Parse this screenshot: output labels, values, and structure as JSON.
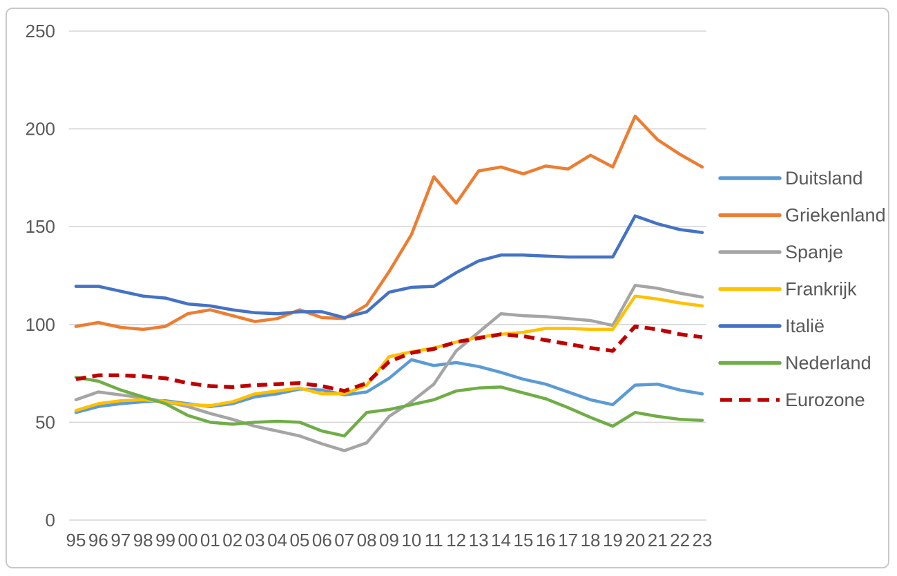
{
  "chart_data": {
    "type": "line",
    "title": "",
    "xlabel": "",
    "ylabel": "",
    "categories": [
      "95",
      "96",
      "97",
      "98",
      "99",
      "00",
      "01",
      "02",
      "03",
      "04",
      "05",
      "06",
      "07",
      "08",
      "09",
      "10",
      "11",
      "12",
      "13",
      "14",
      "15",
      "16",
      "17",
      "18",
      "19",
      "20",
      "21",
      "22",
      "23"
    ],
    "y_ticks": [
      0,
      50,
      100,
      150,
      200,
      250
    ],
    "ylim": [
      0,
      250
    ],
    "grid": "horizontal",
    "legend_position": "right",
    "series": [
      {
        "name": "Duitsland",
        "color": "#5B9BD5",
        "line_style": "solid",
        "values": [
          55,
          58,
          59.5,
          60.5,
          61,
          59.5,
          58,
          59.5,
          63,
          64.5,
          67,
          66.5,
          64,
          65.5,
          72.5,
          82,
          79,
          80.5,
          78.5,
          75.5,
          72,
          69.5,
          65.5,
          61.5,
          59,
          69,
          69.5,
          66.5,
          64.5
        ]
      },
      {
        "name": "Griekenland",
        "color": "#ED7D31",
        "line_style": "solid",
        "values": [
          99,
          101,
          98.5,
          97.5,
          99,
          105.5,
          107.5,
          104.5,
          101.5,
          103,
          107.5,
          103.5,
          103,
          110,
          127,
          146,
          175.5,
          162,
          178.5,
          180.5,
          177,
          181,
          179.5,
          186.5,
          180.5,
          206.5,
          194.5,
          187,
          180.5
        ]
      },
      {
        "name": "Spanje",
        "color": "#A5A5A5",
        "line_style": "solid",
        "values": [
          61.5,
          65.5,
          64,
          62.5,
          60.5,
          58,
          54.5,
          51.5,
          48,
          45.5,
          43,
          39,
          35.5,
          39.5,
          53,
          60.5,
          69.5,
          86.5,
          96,
          105.5,
          104.5,
          104,
          103,
          102,
          99.5,
          120,
          118.5,
          116,
          114
        ]
      },
      {
        "name": "Frankrijk",
        "color": "#FFC000",
        "line_style": "solid",
        "values": [
          56,
          59.5,
          61,
          61.5,
          60.5,
          59,
          58.5,
          60.5,
          64.5,
          66,
          67.5,
          64.5,
          64.5,
          69,
          83.5,
          86,
          88,
          91,
          93.5,
          95,
          96,
          98,
          98,
          97.5,
          97.5,
          114.5,
          113,
          111,
          109.5
        ]
      },
      {
        "name": "Italië",
        "color": "#4472C4",
        "line_style": "solid",
        "values": [
          119.5,
          119.5,
          117,
          114.5,
          113.5,
          110.5,
          109.5,
          107.5,
          106,
          105.5,
          106.5,
          106.5,
          103.5,
          106.5,
          116.5,
          119,
          119.5,
          126.5,
          132.5,
          135.5,
          135.5,
          135,
          134.5,
          134.5,
          134.5,
          155.5,
          151.5,
          148.5,
          147
        ]
      },
      {
        "name": "Nederland",
        "color": "#70AD47",
        "line_style": "solid",
        "values": [
          73,
          71,
          66.5,
          63,
          59.5,
          53.5,
          50,
          49,
          50,
          50.5,
          50,
          45.5,
          43,
          55,
          56.5,
          59,
          61.5,
          66,
          67.5,
          68,
          65,
          62,
          57.5,
          52.5,
          48,
          55,
          53,
          51.5,
          51
        ]
      },
      {
        "name": "Eurozone",
        "color": "#C00000",
        "line_style": "dashed",
        "values": [
          72,
          74,
          74,
          73.5,
          72.5,
          70,
          68.5,
          68,
          69,
          69.5,
          70,
          68.5,
          66,
          70,
          81,
          85.5,
          87.5,
          91,
          93,
          95,
          94,
          92,
          90,
          88,
          86.5,
          99,
          97.5,
          95,
          93.5
        ]
      }
    ]
  },
  "colors": {
    "gridline": "#d6d6d6",
    "tick_label": "#595959",
    "legend_label": "#595959",
    "frame_border": "#c9c9c9",
    "background": "#ffffff"
  }
}
